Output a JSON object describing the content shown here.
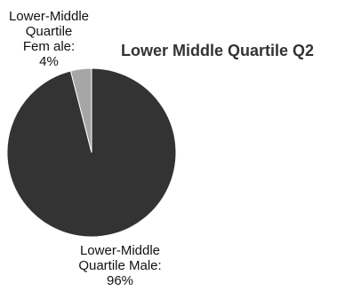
{
  "chart_data": {
    "type": "pie",
    "title": "Lower Middle Quartile Q2",
    "categories": [
      "Lower-Middle Quartile Female",
      "Lower-Middle Quartile Male"
    ],
    "values": [
      4,
      96
    ],
    "unit": "%",
    "colors": [
      "#a6a6a6",
      "#333333"
    ],
    "slice_stroke": "#ffffff",
    "data_labels": {
      "female": [
        "Lower-Middle",
        "Quartile",
        "Fem ale:",
        "4%"
      ],
      "male": [
        "Lower-Middle",
        "Quartile Male:",
        "96%"
      ]
    }
  }
}
